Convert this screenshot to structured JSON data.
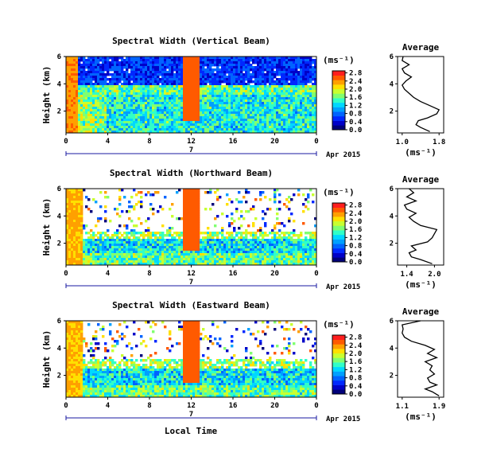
{
  "chart_data": [
    {
      "type": "heatmap",
      "title": "Spectral Width (Vertical Beam)",
      "ylabel": "Height (km)",
      "xlabel": "Local Time",
      "x_ticks": [
        "0",
        "4",
        "8",
        "12",
        "16",
        "20",
        "0"
      ],
      "y_ticks": [
        "2",
        "4",
        "6"
      ],
      "xlim": [
        0,
        24
      ],
      "ylim": [
        0.4,
        6
      ],
      "date_label": "7",
      "date_right": "Apr 2015",
      "colorbar": {
        "unit": "(ms⁻¹)",
        "ticks": [
          "0.0",
          "0.4",
          "0.8",
          "1.2",
          "1.6",
          "2.0",
          "2.4",
          "2.8"
        ],
        "range": [
          0,
          2.9
        ]
      },
      "average_panel": {
        "title": "Average",
        "xlabel": "(ms⁻¹)",
        "x_ticks": [
          "1.0",
          "1.8"
        ],
        "xlim": [
          0.9,
          1.9
        ],
        "y_ticks": [
          "2",
          "4",
          "6"
        ],
        "ylim": [
          0.4,
          6
        ],
        "height": [
          0.5,
          0.8,
          1.0,
          1.3,
          1.5,
          1.8,
          2.1,
          2.4,
          2.7,
          3.0,
          3.3,
          3.6,
          3.9,
          4.2,
          4.5,
          4.8,
          5.1,
          5.4,
          5.7,
          6.0
        ],
        "values": [
          1.6,
          1.4,
          1.3,
          1.35,
          1.55,
          1.75,
          1.8,
          1.6,
          1.4,
          1.25,
          1.15,
          1.05,
          1.0,
          1.08,
          1.2,
          1.05,
          1.0,
          1.15,
          1.0,
          1.02
        ]
      }
    },
    {
      "type": "heatmap",
      "title": "Spectral Width (Northward Beam)",
      "ylabel": "Height (km)",
      "xlabel": "",
      "x_ticks": [
        "0",
        "4",
        "8",
        "12",
        "16",
        "20",
        "0"
      ],
      "y_ticks": [
        "2",
        "4",
        "6"
      ],
      "xlim": [
        0,
        24
      ],
      "ylim": [
        0.4,
        6
      ],
      "date_label": "7",
      "date_right": "Apr 2015",
      "colorbar": {
        "unit": "(ms⁻¹)",
        "ticks": [
          "0.0",
          "0.4",
          "0.8",
          "1.2",
          "1.6",
          "2.0",
          "2.4",
          "2.8"
        ],
        "range": [
          0,
          2.9
        ]
      },
      "average_panel": {
        "title": "Average",
        "xlabel": "(ms⁻¹)",
        "x_ticks": [
          "1.4",
          "2.0"
        ],
        "xlim": [
          1.2,
          2.2
        ],
        "y_ticks": [
          "2",
          "4",
          "6"
        ],
        "ylim": [
          0.4,
          6
        ],
        "height": [
          0.5,
          0.8,
          1.0,
          1.3,
          1.5,
          1.8,
          2.1,
          2.4,
          2.7,
          3.0,
          3.3,
          3.6,
          3.9,
          4.2,
          4.5,
          4.8,
          5.1,
          5.4,
          5.7,
          6.0
        ],
        "values": [
          1.95,
          1.7,
          1.5,
          1.45,
          1.6,
          1.5,
          1.85,
          1.95,
          2.0,
          2.05,
          1.7,
          1.55,
          1.45,
          1.6,
          1.4,
          1.35,
          1.6,
          1.4,
          1.55,
          1.45
        ]
      }
    },
    {
      "type": "heatmap",
      "title": "Spectral Width (Eastward Beam)",
      "ylabel": "Height (km)",
      "xlabel": "Local Time",
      "x_ticks": [
        "0",
        "4",
        "8",
        "12",
        "16",
        "20",
        "0"
      ],
      "y_ticks": [
        "2",
        "4",
        "6"
      ],
      "xlim": [
        0,
        24
      ],
      "ylim": [
        0.4,
        6
      ],
      "date_label": "7",
      "date_right": "Apr 2015",
      "colorbar": {
        "unit": "(ms⁻¹)",
        "ticks": [
          "0.0",
          "0.4",
          "0.8",
          "1.2",
          "1.6",
          "2.0",
          "2.4",
          "2.8"
        ],
        "range": [
          0,
          2.9
        ]
      },
      "average_panel": {
        "title": "Average",
        "xlabel": "(ms⁻¹)",
        "x_ticks": [
          "1.1",
          "1.9"
        ],
        "xlim": [
          1.0,
          2.0
        ],
        "y_ticks": [
          "2",
          "4",
          "6"
        ],
        "ylim": [
          0.4,
          6
        ],
        "height": [
          0.5,
          0.8,
          1.0,
          1.3,
          1.5,
          1.8,
          2.1,
          2.4,
          2.7,
          3.0,
          3.3,
          3.6,
          3.9,
          4.2,
          4.5,
          4.8,
          5.1,
          5.4,
          5.7,
          6.0
        ],
        "values": [
          1.9,
          1.75,
          1.6,
          1.85,
          1.7,
          1.65,
          1.8,
          1.7,
          1.75,
          1.6,
          1.85,
          1.65,
          1.8,
          1.6,
          1.3,
          1.15,
          1.1,
          1.12,
          1.1,
          1.5
        ]
      }
    }
  ],
  "colors": {
    "scale": [
      "#00007a",
      "#0000c8",
      "#0028ff",
      "#0064ff",
      "#00a0ff",
      "#00d8ff",
      "#30ffc8",
      "#80ff70",
      "#c8ff30",
      "#ffe000",
      "#ffa000",
      "#ff5a00",
      "#ff1e1e"
    ],
    "axis": "#1a1aa0"
  }
}
